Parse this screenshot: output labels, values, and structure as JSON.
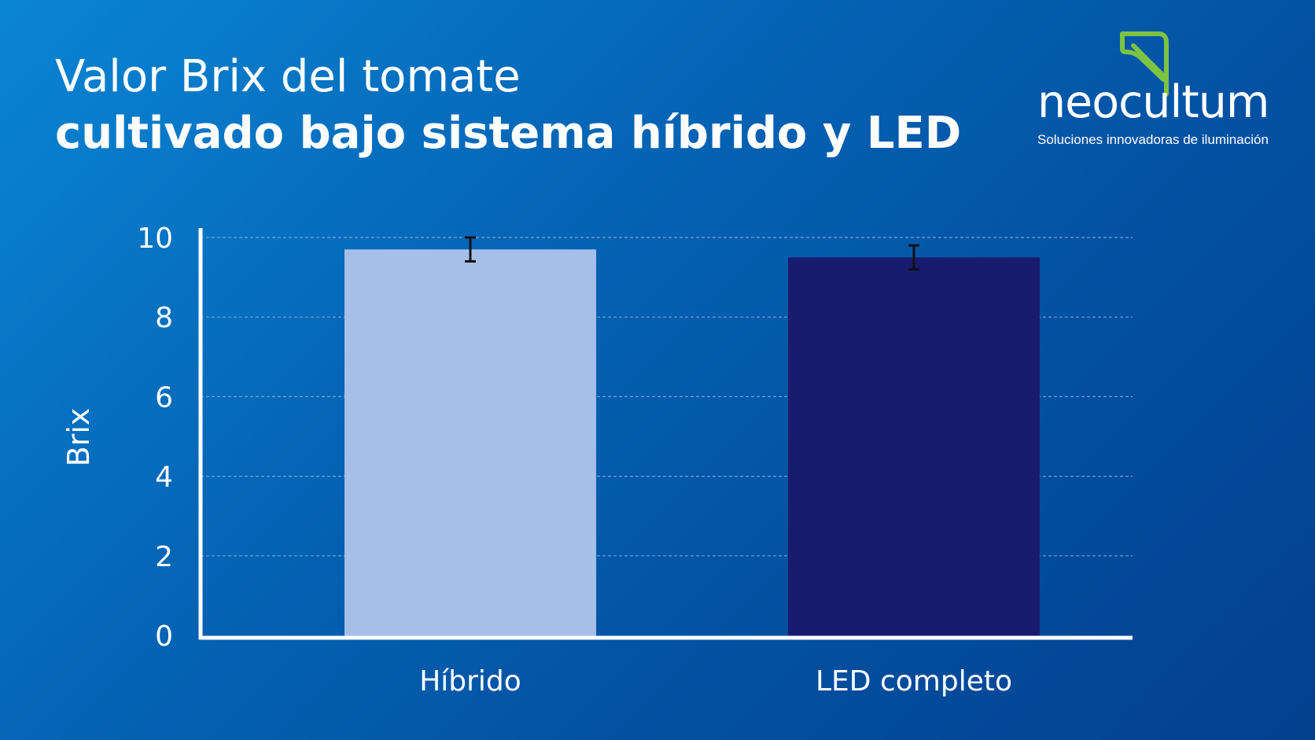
{
  "header": {
    "title_line1": "Valor Brix del tomate",
    "title_line2": "cultivado bajo sistema híbrido y LED"
  },
  "logo": {
    "brand": "neocultum",
    "tagline": "Soluciones innovadoras de iluminación",
    "brand_color": "#ffffff",
    "leaf_color": "#7dc242",
    "icon": "leaf-icon"
  },
  "colors": {
    "background_start": "#0a86d4",
    "background_end": "#03408e",
    "bar_hibrido": "#a6bfe8",
    "bar_led": "#191c6e",
    "error_bar": "#111111",
    "gridline": "#8fb4e4"
  },
  "chart_data": {
    "type": "bar",
    "categories": [
      "Híbrido",
      "LED completo"
    ],
    "values": [
      9.7,
      9.5
    ],
    "errors": [
      0.3,
      0.3
    ],
    "title": "",
    "xlabel": "",
    "ylabel": "Brix",
    "ylim": [
      0,
      10
    ],
    "yticks": [
      0,
      2,
      4,
      6,
      8,
      10
    ],
    "grid": true,
    "legend": "none"
  }
}
